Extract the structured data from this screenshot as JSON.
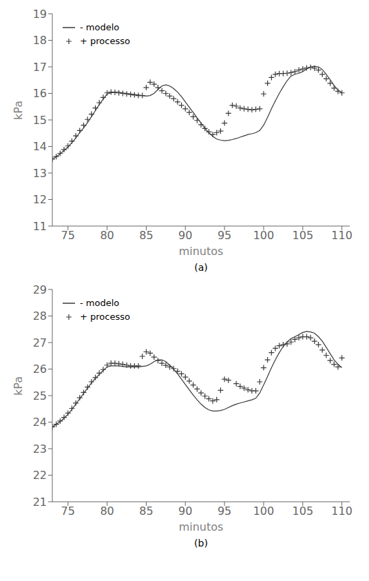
{
  "chart_data": [
    {
      "type": "line",
      "title": "(a)",
      "xlabel": "minutos",
      "ylabel": "kPa",
      "xlim": [
        73,
        111
      ],
      "ylim": [
        11,
        19
      ],
      "xticks": [
        75,
        80,
        85,
        90,
        95,
        100,
        105,
        110
      ],
      "yticks": [
        11,
        12,
        13,
        14,
        15,
        16,
        17,
        18,
        19
      ],
      "grid": false,
      "legend": "upper left",
      "series": [
        {
          "name": "- modelo",
          "type": "line",
          "line_style": "solid",
          "color": "#3a3a3a",
          "x": [
            73.0,
            73.5,
            74.0,
            74.5,
            75.0,
            75.5,
            76.0,
            76.5,
            77.0,
            77.5,
            78.0,
            78.5,
            79.0,
            79.5,
            80.0,
            80.5,
            81.0,
            81.5,
            82.0,
            82.5,
            83.0,
            83.5,
            84.0,
            84.5,
            85.0,
            85.5,
            86.0,
            86.5,
            87.0,
            87.5,
            88.0,
            88.5,
            89.0,
            89.5,
            90.0,
            90.5,
            91.0,
            91.5,
            92.0,
            92.5,
            93.0,
            93.5,
            94.0,
            94.5,
            95.0,
            95.5,
            96.0,
            96.5,
            97.0,
            97.5,
            98.0,
            98.5,
            99.0,
            99.5,
            100.0,
            100.5,
            101.0,
            101.5,
            102.0,
            102.5,
            103.0,
            103.5,
            104.0,
            104.5,
            105.0,
            105.5,
            106.0,
            106.5,
            107.0,
            107.5,
            108.0,
            108.5,
            109.0,
            109.5,
            110.0
          ],
          "values": [
            13.52,
            13.62,
            13.72,
            13.85,
            13.98,
            14.14,
            14.32,
            14.52,
            14.7,
            14.9,
            15.12,
            15.35,
            15.58,
            15.78,
            15.98,
            16.02,
            16.04,
            16.04,
            16.02,
            16.0,
            15.98,
            15.96,
            15.94,
            15.92,
            15.9,
            15.92,
            16.0,
            16.15,
            16.28,
            16.32,
            16.28,
            16.18,
            16.05,
            15.88,
            15.68,
            15.48,
            15.28,
            15.08,
            14.88,
            14.68,
            14.52,
            14.38,
            14.28,
            14.24,
            14.22,
            14.23,
            14.26,
            14.3,
            14.35,
            14.4,
            14.45,
            14.48,
            14.52,
            14.6,
            14.8,
            15.1,
            15.42,
            15.72,
            16.0,
            16.25,
            16.48,
            16.65,
            16.72,
            16.76,
            16.82,
            16.92,
            17.0,
            17.02,
            17.0,
            16.9,
            16.72,
            16.52,
            16.3,
            16.12,
            16.02
          ]
        },
        {
          "name": "+ processo",
          "type": "scatter",
          "marker": "plus",
          "color": "#3a3a3a",
          "x": [
            73.0,
            73.5,
            74.0,
            74.5,
            75.0,
            75.5,
            76.0,
            76.5,
            77.0,
            77.5,
            78.0,
            78.5,
            79.0,
            79.5,
            80.0,
            80.5,
            81.0,
            81.5,
            82.0,
            82.5,
            83.0,
            83.5,
            84.0,
            84.5,
            85.0,
            85.5,
            86.0,
            86.5,
            87.0,
            87.5,
            88.0,
            88.5,
            89.0,
            89.5,
            90.0,
            90.5,
            91.0,
            91.5,
            92.0,
            92.5,
            93.0,
            93.5,
            94.0,
            94.5,
            95.0,
            95.5,
            96.0,
            96.5,
            97.0,
            97.5,
            98.0,
            98.5,
            99.0,
            99.5,
            100.0,
            100.5,
            101.0,
            101.5,
            102.0,
            102.5,
            103.0,
            103.5,
            104.0,
            104.5,
            105.0,
            105.5,
            106.0,
            106.5,
            107.0,
            107.5,
            108.0,
            108.5,
            109.0,
            109.5,
            110.0
          ],
          "values": [
            13.52,
            13.62,
            13.74,
            13.88,
            14.02,
            14.2,
            14.4,
            14.6,
            14.8,
            15.02,
            15.22,
            15.45,
            15.65,
            15.85,
            16.02,
            16.05,
            16.04,
            16.02,
            16.0,
            15.98,
            15.96,
            15.94,
            15.92,
            15.92,
            16.22,
            16.42,
            16.35,
            16.22,
            16.1,
            16.0,
            15.9,
            15.8,
            15.68,
            15.55,
            15.42,
            15.28,
            15.12,
            14.98,
            14.82,
            14.68,
            14.55,
            14.45,
            14.52,
            14.58,
            14.88,
            15.25,
            15.55,
            15.52,
            15.45,
            15.42,
            15.4,
            15.38,
            15.4,
            15.42,
            15.98,
            16.38,
            16.6,
            16.72,
            16.75,
            16.75,
            16.76,
            16.78,
            16.82,
            16.88,
            16.92,
            16.96,
            16.98,
            16.95,
            16.88,
            16.72,
            16.55,
            16.38,
            16.2,
            16.08,
            16.02
          ]
        }
      ]
    },
    {
      "type": "line",
      "title": "(b)",
      "xlabel": "minutos",
      "ylabel": "kPa",
      "xlim": [
        73,
        111
      ],
      "ylim": [
        21,
        29
      ],
      "xticks": [
        75,
        80,
        85,
        90,
        95,
        100,
        105,
        110
      ],
      "yticks": [
        21,
        22,
        23,
        24,
        25,
        26,
        27,
        28,
        29
      ],
      "grid": false,
      "legend": "upper left",
      "series": [
        {
          "name": "- modelo",
          "type": "line",
          "line_style": "solid",
          "color": "#3a3a3a",
          "x": [
            73.0,
            73.5,
            74.0,
            74.5,
            75.0,
            75.5,
            76.0,
            76.5,
            77.0,
            77.5,
            78.0,
            78.5,
            79.0,
            79.5,
            80.0,
            80.5,
            81.0,
            81.5,
            82.0,
            82.5,
            83.0,
            83.5,
            84.0,
            84.5,
            85.0,
            85.5,
            86.0,
            86.5,
            87.0,
            87.5,
            88.0,
            88.5,
            89.0,
            89.5,
            90.0,
            90.5,
            91.0,
            91.5,
            92.0,
            92.5,
            93.0,
            93.5,
            94.0,
            94.5,
            95.0,
            95.5,
            96.0,
            96.5,
            97.0,
            97.5,
            98.0,
            98.5,
            99.0,
            99.5,
            100.0,
            100.5,
            101.0,
            101.5,
            102.0,
            102.5,
            103.0,
            103.5,
            104.0,
            104.5,
            105.0,
            105.5,
            106.0,
            106.5,
            107.0,
            107.5,
            108.0,
            108.5,
            109.0,
            109.5,
            110.0
          ],
          "values": [
            23.82,
            23.92,
            24.02,
            24.15,
            24.3,
            24.48,
            24.68,
            24.88,
            25.08,
            25.28,
            25.48,
            25.65,
            25.8,
            25.95,
            26.08,
            26.12,
            26.12,
            26.12,
            26.1,
            26.08,
            26.08,
            26.08,
            26.08,
            26.1,
            26.12,
            26.18,
            26.28,
            26.35,
            26.35,
            26.28,
            26.15,
            26.0,
            25.82,
            25.62,
            25.42,
            25.22,
            25.02,
            24.84,
            24.68,
            24.55,
            24.46,
            24.42,
            24.42,
            24.44,
            24.48,
            24.55,
            24.62,
            24.68,
            24.72,
            24.76,
            24.8,
            24.84,
            24.9,
            25.1,
            25.4,
            25.72,
            26.05,
            26.35,
            26.62,
            26.85,
            27.02,
            27.15,
            27.22,
            27.3,
            27.38,
            27.42,
            27.4,
            27.35,
            27.22,
            27.05,
            26.82,
            26.58,
            26.35,
            26.18,
            26.05
          ]
        },
        {
          "name": "+ processo",
          "type": "scatter",
          "marker": "plus",
          "color": "#3a3a3a",
          "x": [
            73.0,
            73.5,
            74.0,
            74.5,
            75.0,
            75.5,
            76.0,
            76.5,
            77.0,
            77.5,
            78.0,
            78.5,
            79.0,
            79.5,
            80.0,
            80.5,
            81.0,
            81.5,
            82.0,
            82.5,
            83.0,
            83.5,
            84.0,
            84.5,
            85.0,
            85.5,
            86.0,
            86.5,
            87.0,
            87.5,
            88.0,
            88.5,
            89.0,
            89.5,
            90.0,
            90.5,
            91.0,
            91.5,
            92.0,
            92.5,
            93.0,
            93.5,
            94.0,
            94.5,
            95.0,
            95.5,
            96.5,
            97.0,
            97.5,
            98.0,
            98.5,
            99.0,
            99.5,
            100.0,
            100.5,
            101.0,
            101.5,
            102.0,
            102.5,
            103.0,
            103.5,
            104.0,
            104.5,
            105.0,
            105.5,
            106.0,
            106.5,
            107.0,
            107.5,
            108.0,
            108.5,
            109.0,
            109.5,
            110.0
          ],
          "values": [
            23.82,
            23.92,
            24.04,
            24.18,
            24.34,
            24.52,
            24.72,
            24.92,
            25.12,
            25.32,
            25.52,
            25.68,
            25.85,
            25.98,
            26.15,
            26.22,
            26.22,
            26.2,
            26.18,
            26.15,
            26.12,
            26.12,
            26.12,
            26.48,
            26.65,
            26.6,
            26.45,
            26.32,
            26.22,
            26.14,
            26.08,
            26.02,
            25.92,
            25.82,
            25.7,
            25.55,
            25.4,
            25.25,
            25.1,
            24.98,
            24.88,
            24.8,
            24.85,
            25.2,
            25.62,
            25.58,
            25.45,
            25.35,
            25.28,
            25.22,
            25.18,
            25.18,
            25.52,
            26.05,
            26.35,
            26.62,
            26.78,
            26.88,
            26.92,
            26.95,
            27.02,
            27.12,
            27.18,
            27.22,
            27.22,
            27.18,
            27.05,
            26.92,
            26.72,
            26.52,
            26.32,
            26.18,
            26.08,
            26.42
          ]
        }
      ]
    }
  ]
}
